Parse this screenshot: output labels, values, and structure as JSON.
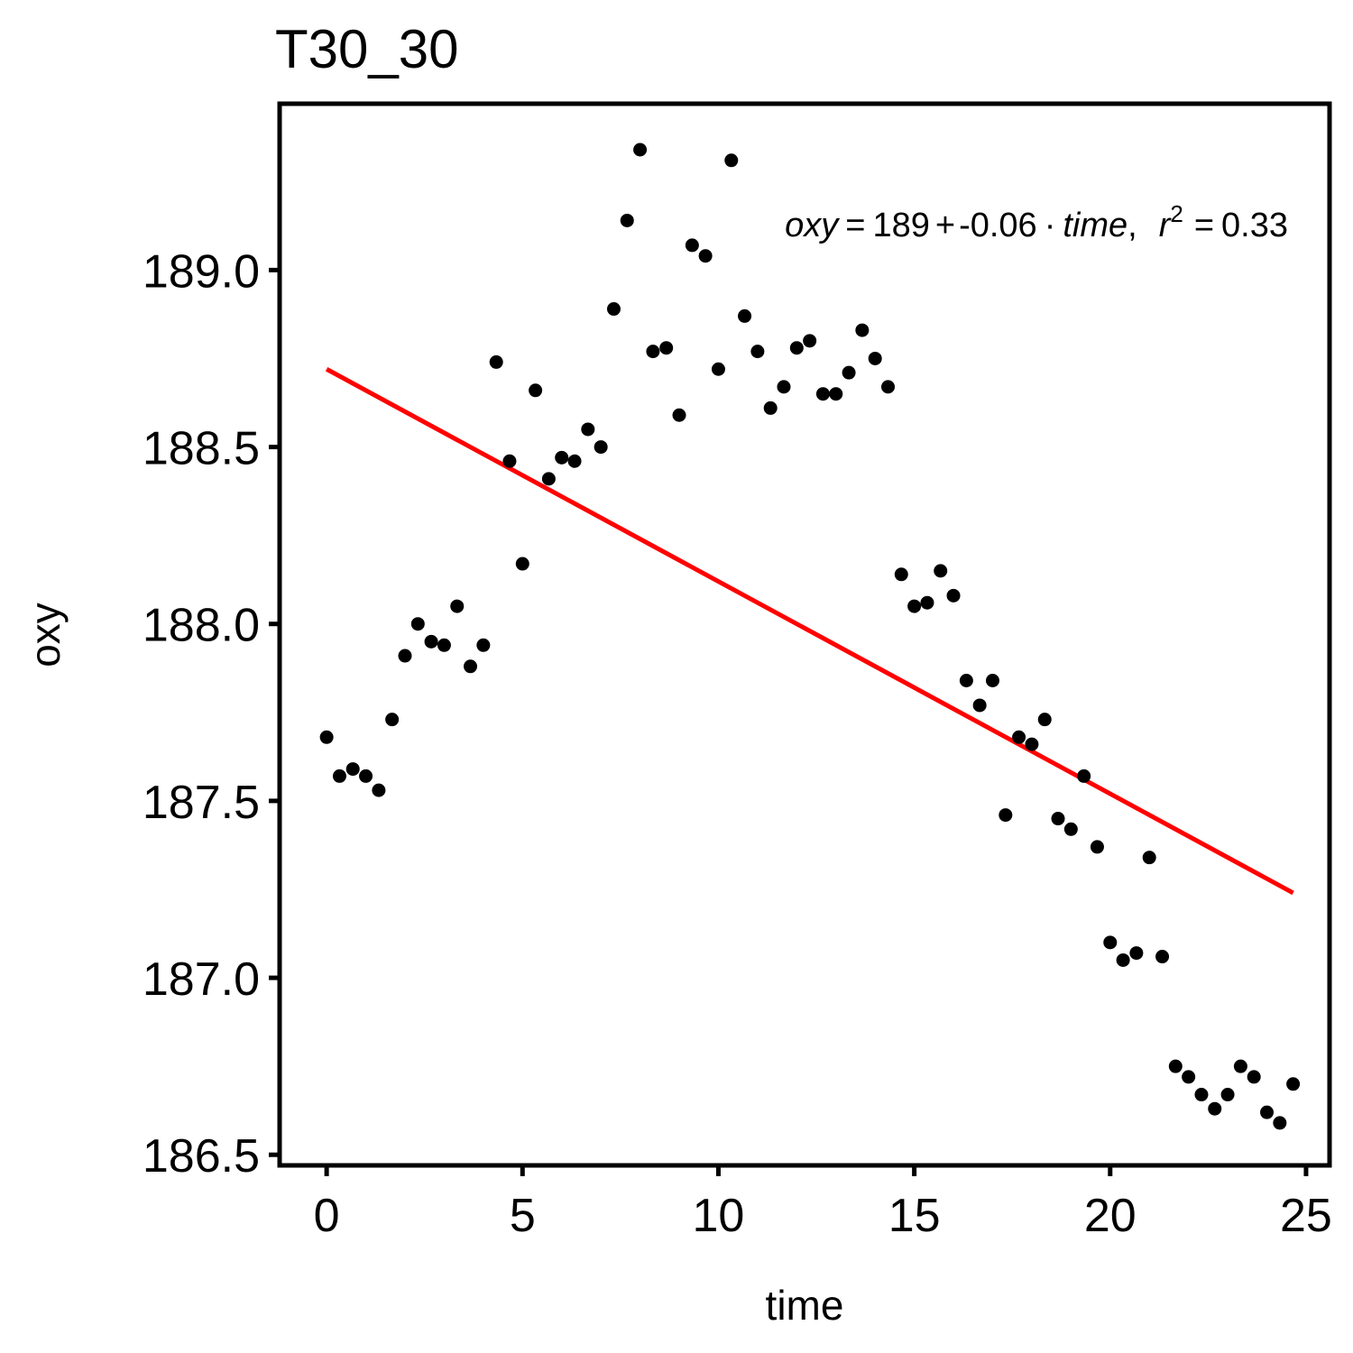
{
  "chart_data": {
    "type": "scatter",
    "title": "T30_30",
    "xlabel": "time",
    "ylabel": "oxy",
    "xlim": [
      -1.2,
      25.6
    ],
    "ylim": [
      186.47,
      189.47
    ],
    "xticks": [
      0,
      5,
      10,
      15,
      20,
      25
    ],
    "xtick_labels": [
      "0",
      "5",
      "10",
      "15",
      "20",
      "25"
    ],
    "yticks": [
      186.5,
      187.0,
      187.5,
      188.0,
      188.5,
      189.0
    ],
    "ytick_labels": [
      "186.5",
      "187.0",
      "187.5",
      "188.0",
      "188.5",
      "189.0"
    ],
    "grid": false,
    "points": [
      {
        "x": 0.0,
        "y": 187.68
      },
      {
        "x": 0.33,
        "y": 187.57
      },
      {
        "x": 0.67,
        "y": 187.59
      },
      {
        "x": 1.0,
        "y": 187.57
      },
      {
        "x": 1.33,
        "y": 187.53
      },
      {
        "x": 1.67,
        "y": 187.73
      },
      {
        "x": 2.0,
        "y": 187.91
      },
      {
        "x": 2.33,
        "y": 188.0
      },
      {
        "x": 2.67,
        "y": 187.95
      },
      {
        "x": 3.0,
        "y": 187.94
      },
      {
        "x": 3.33,
        "y": 188.05
      },
      {
        "x": 3.67,
        "y": 187.88
      },
      {
        "x": 4.0,
        "y": 187.94
      },
      {
        "x": 4.33,
        "y": 188.74
      },
      {
        "x": 4.67,
        "y": 188.46
      },
      {
        "x": 5.0,
        "y": 188.17
      },
      {
        "x": 5.33,
        "y": 188.66
      },
      {
        "x": 5.67,
        "y": 188.41
      },
      {
        "x": 6.0,
        "y": 188.47
      },
      {
        "x": 6.33,
        "y": 188.46
      },
      {
        "x": 6.67,
        "y": 188.55
      },
      {
        "x": 7.0,
        "y": 188.5
      },
      {
        "x": 7.33,
        "y": 188.89
      },
      {
        "x": 7.67,
        "y": 189.14
      },
      {
        "x": 8.0,
        "y": 189.34
      },
      {
        "x": 8.33,
        "y": 188.77
      },
      {
        "x": 8.67,
        "y": 188.78
      },
      {
        "x": 9.0,
        "y": 188.59
      },
      {
        "x": 9.33,
        "y": 189.07
      },
      {
        "x": 9.67,
        "y": 189.04
      },
      {
        "x": 10.0,
        "y": 188.72
      },
      {
        "x": 10.33,
        "y": 189.31
      },
      {
        "x": 10.67,
        "y": 188.87
      },
      {
        "x": 11.0,
        "y": 188.77
      },
      {
        "x": 11.33,
        "y": 188.61
      },
      {
        "x": 11.67,
        "y": 188.67
      },
      {
        "x": 12.0,
        "y": 188.78
      },
      {
        "x": 12.33,
        "y": 188.8
      },
      {
        "x": 12.67,
        "y": 188.65
      },
      {
        "x": 13.0,
        "y": 188.65
      },
      {
        "x": 13.33,
        "y": 188.71
      },
      {
        "x": 13.67,
        "y": 188.83
      },
      {
        "x": 14.0,
        "y": 188.75
      },
      {
        "x": 14.33,
        "y": 188.67
      },
      {
        "x": 14.67,
        "y": 188.14
      },
      {
        "x": 15.0,
        "y": 188.05
      },
      {
        "x": 15.33,
        "y": 188.06
      },
      {
        "x": 15.67,
        "y": 188.15
      },
      {
        "x": 16.0,
        "y": 188.08
      },
      {
        "x": 16.33,
        "y": 187.84
      },
      {
        "x": 16.67,
        "y": 187.77
      },
      {
        "x": 17.0,
        "y": 187.84
      },
      {
        "x": 17.33,
        "y": 187.46
      },
      {
        "x": 17.67,
        "y": 187.68
      },
      {
        "x": 18.0,
        "y": 187.66
      },
      {
        "x": 18.33,
        "y": 187.73
      },
      {
        "x": 18.67,
        "y": 187.45
      },
      {
        "x": 19.0,
        "y": 187.42
      },
      {
        "x": 19.33,
        "y": 187.57
      },
      {
        "x": 19.67,
        "y": 187.37
      },
      {
        "x": 20.0,
        "y": 187.1
      },
      {
        "x": 20.33,
        "y": 187.05
      },
      {
        "x": 20.67,
        "y": 187.07
      },
      {
        "x": 21.0,
        "y": 187.34
      },
      {
        "x": 21.33,
        "y": 187.06
      },
      {
        "x": 21.67,
        "y": 186.75
      },
      {
        "x": 22.0,
        "y": 186.72
      },
      {
        "x": 22.33,
        "y": 186.67
      },
      {
        "x": 22.67,
        "y": 186.63
      },
      {
        "x": 23.0,
        "y": 186.67
      },
      {
        "x": 23.33,
        "y": 186.75
      },
      {
        "x": 23.67,
        "y": 186.72
      },
      {
        "x": 24.0,
        "y": 186.62
      },
      {
        "x": 24.33,
        "y": 186.59
      },
      {
        "x": 24.67,
        "y": 186.7
      }
    ],
    "fit_line": {
      "x": [
        0,
        24.67
      ],
      "y": [
        188.72,
        187.24
      ],
      "color": "#ff0000"
    },
    "annotation": {
      "lhs": "oxy",
      "eq_sign": "=",
      "intercept": "189",
      "plus": "+",
      "slope": "-0.06",
      "dot": "·",
      "var": "time",
      "comma": ",",
      "r_symbol": "r",
      "r_exp": "2",
      "eq_sign_2": "=",
      "r2_value": "0.33"
    },
    "point_color": "#000000"
  }
}
